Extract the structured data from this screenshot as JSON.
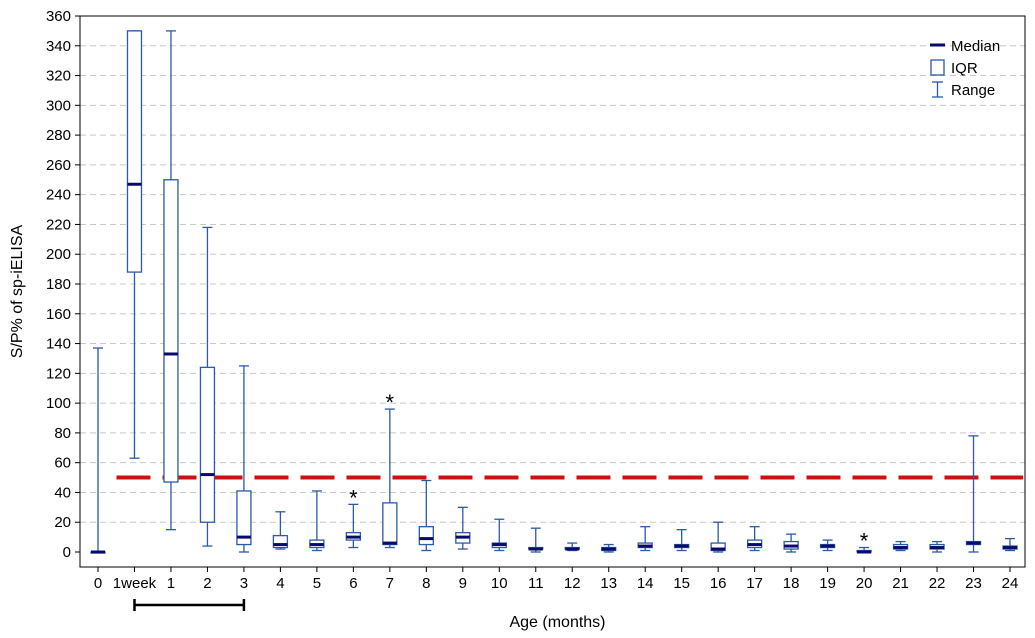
{
  "chart_data": {
    "type": "box",
    "xlabel": "Age (months)",
    "ylabel": "S/P% of sp-iELISA",
    "ylim": [
      0,
      360
    ],
    "y_tick_step": 20,
    "grid": "horizontal dashed",
    "legend_position": "top-right",
    "legend": {
      "median": "Median",
      "iqr": "IQR",
      "range": "Range"
    },
    "categories": [
      "0",
      "1week",
      "1",
      "2",
      "3",
      "4",
      "5",
      "6",
      "7",
      "8",
      "9",
      "10",
      "11",
      "12",
      "13",
      "14",
      "15",
      "16",
      "17",
      "18",
      "19",
      "20",
      "21",
      "22",
      "23",
      "24"
    ],
    "boxes": [
      {
        "min": 0,
        "q1": 0,
        "median": 0,
        "q3": 0,
        "max": 137
      },
      {
        "min": 63,
        "q1": 188,
        "median": 247,
        "q3": 350,
        "max": 350
      },
      {
        "min": 15,
        "q1": 47,
        "median": 133,
        "q3": 250,
        "max": 350
      },
      {
        "min": 4,
        "q1": 20,
        "median": 52,
        "q3": 124,
        "max": 218
      },
      {
        "min": 0,
        "q1": 5,
        "median": 10,
        "q3": 41,
        "max": 125
      },
      {
        "min": 2,
        "q1": 3,
        "median": 5,
        "q3": 11,
        "max": 27
      },
      {
        "min": 1,
        "q1": 3,
        "median": 5,
        "q3": 8,
        "max": 41
      },
      {
        "min": 3,
        "q1": 8,
        "median": 10,
        "q3": 13,
        "max": 32
      },
      {
        "min": 3,
        "q1": 5,
        "median": 6,
        "q3": 33,
        "max": 96
      },
      {
        "min": 1,
        "q1": 5,
        "median": 9,
        "q3": 17,
        "max": 48
      },
      {
        "min": 2,
        "q1": 6,
        "median": 10,
        "q3": 13,
        "max": 30
      },
      {
        "min": 1,
        "q1": 3,
        "median": 5,
        "q3": 6,
        "max": 22
      },
      {
        "min": 0,
        "q1": 2,
        "median": 2,
        "q3": 3,
        "max": 16
      },
      {
        "min": 1,
        "q1": 2,
        "median": 2,
        "q3": 3,
        "max": 6
      },
      {
        "min": 0,
        "q1": 1,
        "median": 2,
        "q3": 3,
        "max": 5
      },
      {
        "min": 1,
        "q1": 3,
        "median": 4,
        "q3": 6,
        "max": 17
      },
      {
        "min": 1,
        "q1": 3,
        "median": 4,
        "q3": 5,
        "max": 15
      },
      {
        "min": 0,
        "q1": 1,
        "median": 2,
        "q3": 6,
        "max": 20
      },
      {
        "min": 1,
        "q1": 3,
        "median": 5,
        "q3": 8,
        "max": 17
      },
      {
        "min": 0,
        "q1": 2,
        "median": 4,
        "q3": 7,
        "max": 12
      },
      {
        "min": 1,
        "q1": 3,
        "median": 4,
        "q3": 5,
        "max": 8
      },
      {
        "min": 0,
        "q1": 0,
        "median": 0,
        "q3": 1,
        "max": 3
      },
      {
        "min": 1,
        "q1": 2,
        "median": 3,
        "q3": 5,
        "max": 7
      },
      {
        "min": 0,
        "q1": 2,
        "median": 3,
        "q3": 5,
        "max": 7
      },
      {
        "min": 0,
        "q1": 5,
        "median": 6,
        "q3": 7,
        "max": 78
      },
      {
        "min": 1,
        "q1": 2,
        "median": 3,
        "q3": 4,
        "max": 9
      }
    ],
    "cutoff_line": {
      "y": 50,
      "color": "#cc1111"
    },
    "asterisks": [
      {
        "category": "6",
        "y": 34,
        "text": "*"
      },
      {
        "category": "7",
        "y": 98,
        "text": "*"
      },
      {
        "category": "20",
        "y": 5,
        "text": "*"
      }
    ],
    "bracket": {
      "from": "1week",
      "to": "3"
    },
    "colors": {
      "box": "#2b5aa8",
      "median": "#0a0a6e",
      "grid": "#c8c8c8",
      "cutoff": "#cc1111",
      "axis": "#000000"
    }
  }
}
